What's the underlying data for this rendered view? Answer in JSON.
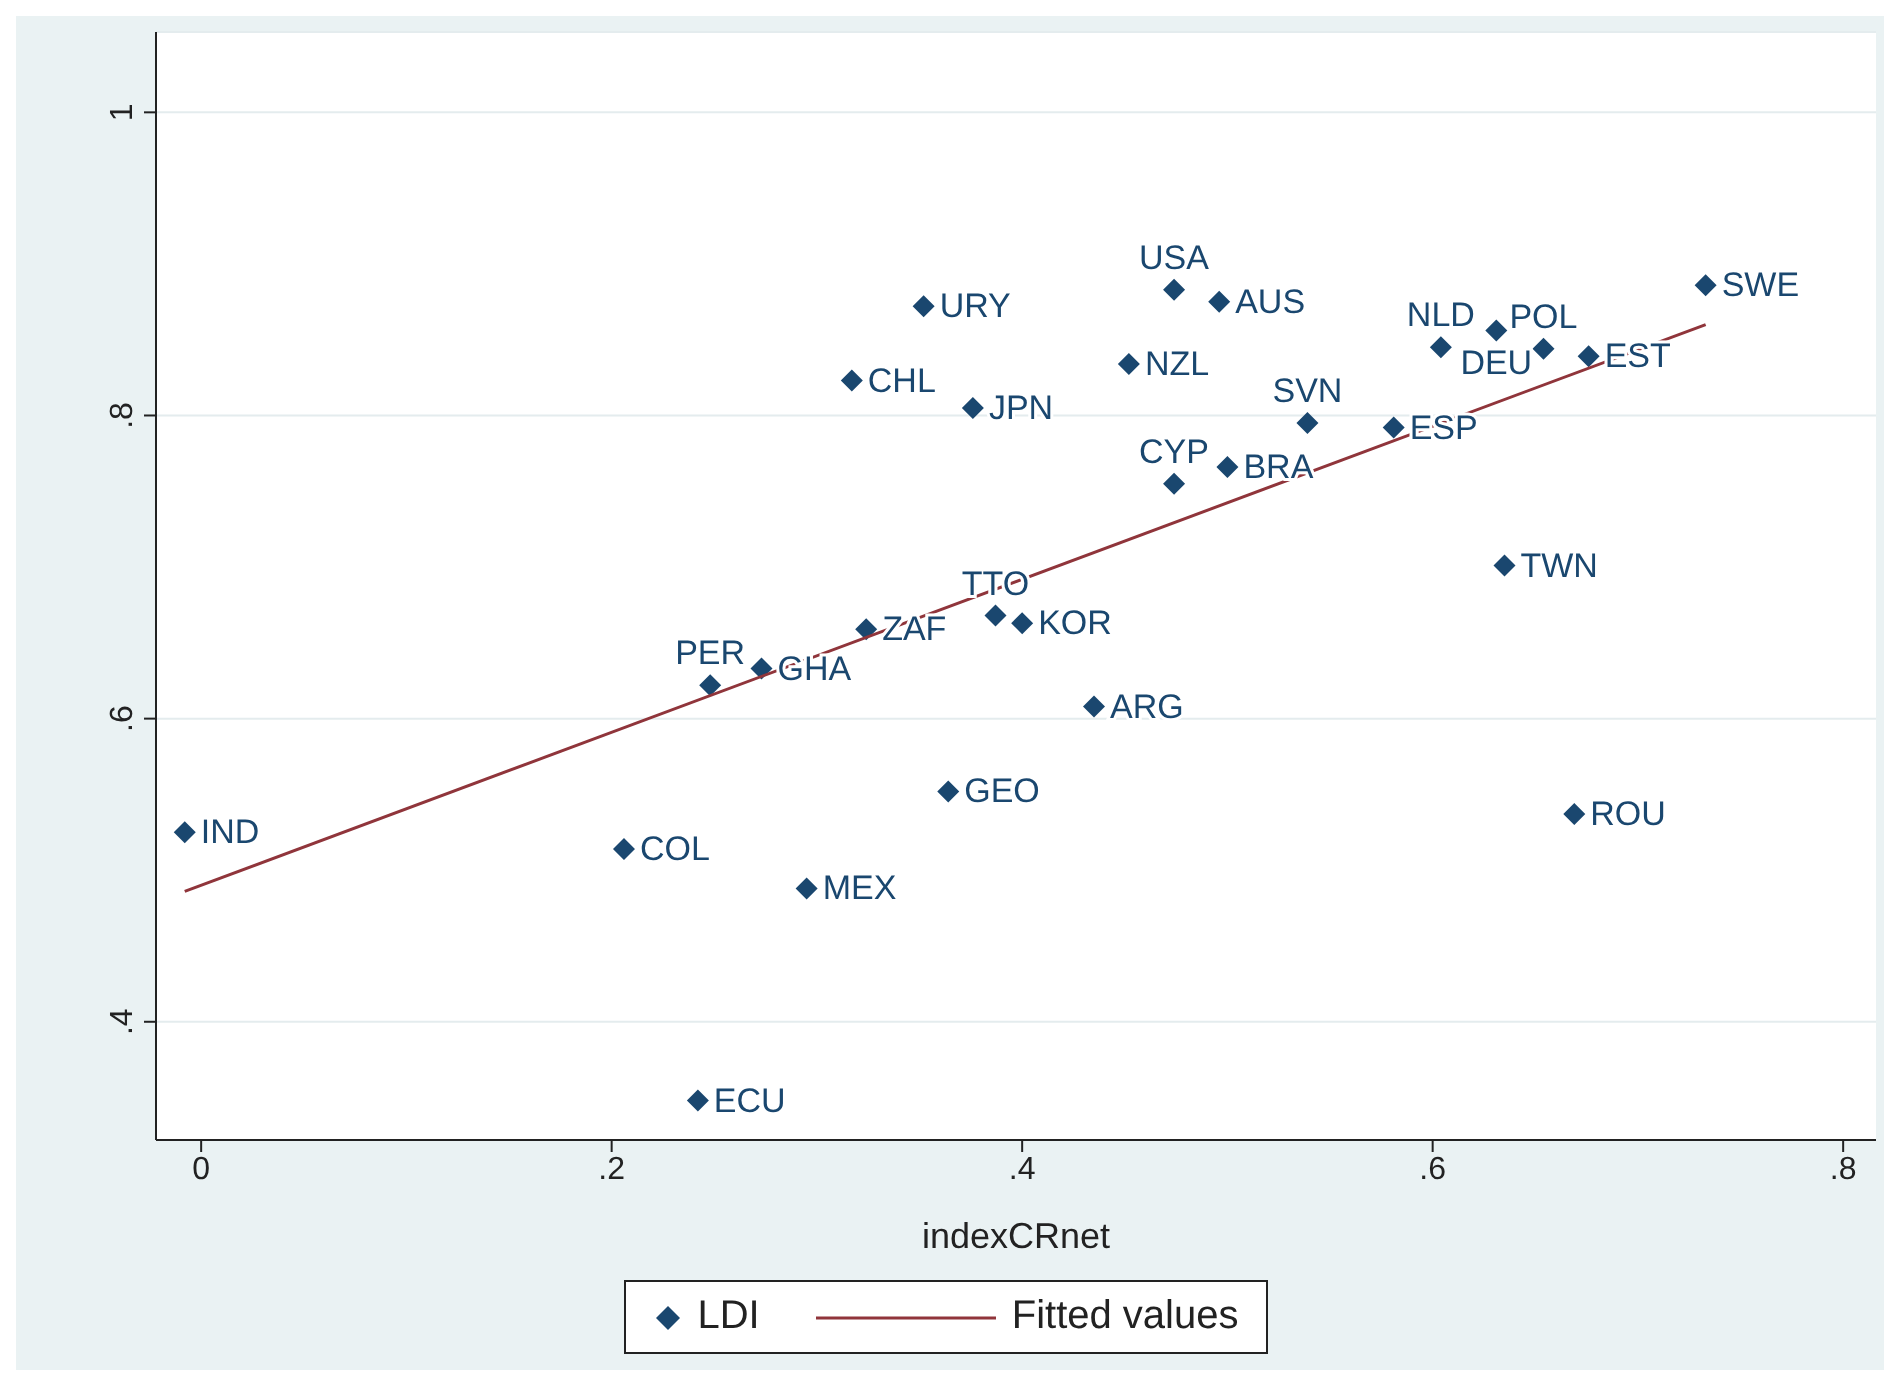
{
  "chart_data": {
    "type": "scatter",
    "xlabel": "indexCRnet",
    "legend": "bottom",
    "grid": "y",
    "xlim": [
      -0.022,
      0.816
    ],
    "ylim": [
      0.322,
      1.053
    ],
    "xticks": [
      {
        "value": 0,
        "label": "0"
      },
      {
        "value": 0.2,
        "label": ".2"
      },
      {
        "value": 0.4,
        "label": ".4"
      },
      {
        "value": 0.6,
        "label": ".6"
      },
      {
        "value": 0.8,
        "label": ".8"
      }
    ],
    "yticks": [
      {
        "value": 0.4,
        "label": ".4"
      },
      {
        "value": 0.6,
        "label": ".6"
      },
      {
        "value": 0.8,
        "label": ".8"
      },
      {
        "value": 1,
        "label": "1"
      }
    ],
    "series": [
      {
        "name": "LDI",
        "marker": "diamond",
        "color": "#1a476f",
        "x": [
          -0.008,
          0.206,
          0.295,
          0.242,
          0.364,
          0.435,
          0.248,
          0.273,
          0.324,
          0.387,
          0.4,
          0.317,
          0.352,
          0.376,
          0.452,
          0.474,
          0.496,
          0.474,
          0.5,
          0.539,
          0.581,
          0.635,
          0.669,
          0.604,
          0.631,
          0.654,
          0.676,
          0.733
        ],
        "values": [
          0.525,
          0.514,
          0.488,
          0.348,
          0.552,
          0.608,
          0.622,
          0.633,
          0.659,
          0.668,
          0.663,
          0.823,
          0.872,
          0.805,
          0.834,
          0.883,
          0.875,
          0.755,
          0.766,
          0.795,
          0.792,
          0.701,
          0.537,
          0.845,
          0.856,
          0.844,
          0.839,
          0.886
        ]
      },
      {
        "name": "Fitted values",
        "type": "line",
        "color": "#90353b",
        "x": [
          -0.008,
          0.733
        ],
        "values": [
          0.486,
          0.86
        ]
      }
    ],
    "annotations": [
      {
        "text": "IND",
        "x": -0.008,
        "y": 0.525
      },
      {
        "text": "COL",
        "x": 0.206,
        "y": 0.514
      },
      {
        "text": "MEX",
        "x": 0.295,
        "y": 0.488
      },
      {
        "text": "ECU",
        "x": 0.242,
        "y": 0.348
      },
      {
        "text": "GEO",
        "x": 0.364,
        "y": 0.552
      },
      {
        "text": "ARG",
        "x": 0.435,
        "y": 0.608
      },
      {
        "text": "PER",
        "x": 0.248,
        "y": 0.622
      },
      {
        "text": "GHA",
        "x": 0.273,
        "y": 0.633
      },
      {
        "text": "ZAF",
        "x": 0.324,
        "y": 0.659
      },
      {
        "text": "TTO",
        "x": 0.387,
        "y": 0.668
      },
      {
        "text": "KOR",
        "x": 0.4,
        "y": 0.663
      },
      {
        "text": "CHL",
        "x": 0.317,
        "y": 0.823
      },
      {
        "text": "URY",
        "x": 0.352,
        "y": 0.872
      },
      {
        "text": "JPN",
        "x": 0.376,
        "y": 0.805
      },
      {
        "text": "NZL",
        "x": 0.452,
        "y": 0.834
      },
      {
        "text": "USA",
        "x": 0.474,
        "y": 0.883
      },
      {
        "text": "AUS",
        "x": 0.496,
        "y": 0.875
      },
      {
        "text": "CYP",
        "x": 0.474,
        "y": 0.755
      },
      {
        "text": "BRA",
        "x": 0.5,
        "y": 0.766
      },
      {
        "text": "SVN",
        "x": 0.539,
        "y": 0.795
      },
      {
        "text": "ESP",
        "x": 0.581,
        "y": 0.792
      },
      {
        "text": "TWN",
        "x": 0.635,
        "y": 0.701
      },
      {
        "text": "ROU",
        "x": 0.669,
        "y": 0.537
      },
      {
        "text": "NLD",
        "x": 0.604,
        "y": 0.845
      },
      {
        "text": "DEU",
        "x": 0.631,
        "y": 0.856
      },
      {
        "text": "POL",
        "x": 0.654,
        "y": 0.844
      },
      {
        "text": "EST",
        "x": 0.676,
        "y": 0.839
      },
      {
        "text": "SWE",
        "x": 0.733,
        "y": 0.886
      }
    ]
  }
}
